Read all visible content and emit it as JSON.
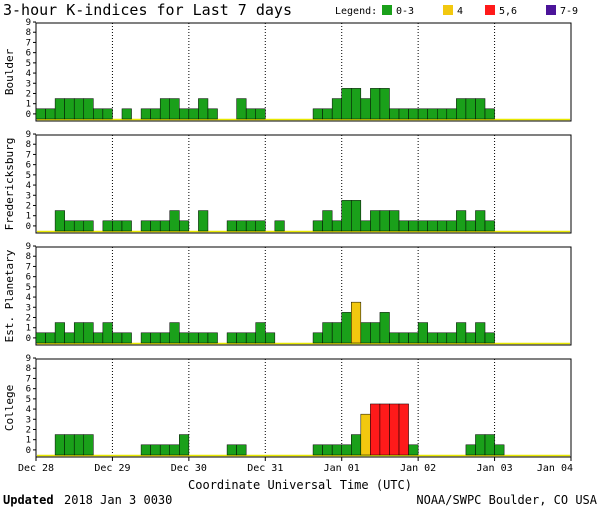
{
  "colors": {
    "c0_3": "#1aa01a",
    "c4": "#f2c80f",
    "c5_6": "#ff1a1a",
    "c7_9": "#4b1499",
    "baseline": "#e8e800"
  },
  "chart_data": {
    "type": "bar",
    "title": "3-hour K-indices for Last 7 days",
    "legend": {
      "label": "Legend:",
      "placement": "top-right",
      "items": [
        {
          "label": "0-3",
          "color": "#1aa01a"
        },
        {
          "label": "4",
          "color": "#f2c80f"
        },
        {
          "label": "5,6",
          "color": "#ff1a1a"
        },
        {
          "label": "7-9",
          "color": "#4b1499"
        }
      ]
    },
    "xlabel": "Coordinate Universal Time (UTC)",
    "x_ticks": [
      "Dec 28",
      "Dec 29",
      "Dec 30",
      "Dec 31",
      "Jan 01",
      "Jan 02",
      "Jan 03",
      "Jan 04"
    ],
    "ylim": [
      0,
      9
    ],
    "y_ticks": [
      "0",
      "1",
      "2",
      "3",
      "4",
      "5",
      "6",
      "7",
      "8",
      "9"
    ],
    "bins_per_day": 8,
    "days": 7,
    "grid": "vertical day lines",
    "panels": [
      {
        "name": "Boulder",
        "values": [
          1,
          1,
          2,
          2,
          2,
          2,
          1,
          1,
          0,
          1,
          0,
          1,
          1,
          2,
          2,
          1,
          1,
          2,
          1,
          0,
          0,
          2,
          1,
          1,
          0,
          0,
          0,
          0,
          0,
          1,
          1,
          2,
          3,
          3,
          2,
          3,
          3,
          1,
          1,
          1,
          1,
          1,
          1,
          1,
          2,
          2,
          2,
          1,
          0,
          0,
          0,
          0,
          0,
          0,
          0,
          0
        ]
      },
      {
        "name": "Fredericksburg",
        "values": [
          0,
          0,
          2,
          1,
          1,
          1,
          0,
          1,
          1,
          1,
          0,
          1,
          1,
          1,
          2,
          1,
          0,
          2,
          0,
          0,
          1,
          1,
          1,
          1,
          0,
          1,
          0,
          0,
          0,
          1,
          2,
          1,
          3,
          3,
          1,
          2,
          2,
          2,
          1,
          1,
          1,
          1,
          1,
          1,
          2,
          1,
          2,
          1,
          0,
          0,
          0,
          0,
          0,
          0,
          0,
          0
        ]
      },
      {
        "name": "Est. Planetary",
        "values": [
          1,
          1,
          2,
          1,
          2,
          2,
          1,
          2,
          1,
          1,
          0,
          1,
          1,
          1,
          2,
          1,
          1,
          1,
          1,
          0,
          1,
          1,
          1,
          2,
          1,
          0,
          0,
          0,
          0,
          1,
          2,
          2,
          3,
          4,
          2,
          2,
          3,
          1,
          1,
          1,
          2,
          1,
          1,
          1,
          2,
          1,
          2,
          1,
          0,
          0,
          0,
          0,
          0,
          0,
          0,
          0
        ]
      },
      {
        "name": "College",
        "values": [
          0,
          0,
          2,
          2,
          2,
          2,
          0,
          0,
          0,
          0,
          0,
          1,
          1,
          1,
          1,
          2,
          0,
          0,
          0,
          0,
          1,
          1,
          0,
          0,
          0,
          0,
          0,
          0,
          0,
          1,
          1,
          1,
          1,
          2,
          4,
          5,
          5,
          5,
          5,
          1,
          0,
          0,
          0,
          0,
          0,
          1,
          2,
          2,
          1,
          0,
          0,
          0,
          0,
          0,
          0,
          0
        ]
      }
    ]
  },
  "footer": {
    "updated_label": "Updated",
    "updated_value": "2018 Jan  3 0030",
    "source": "NOAA/SWPC Boulder, CO USA"
  }
}
